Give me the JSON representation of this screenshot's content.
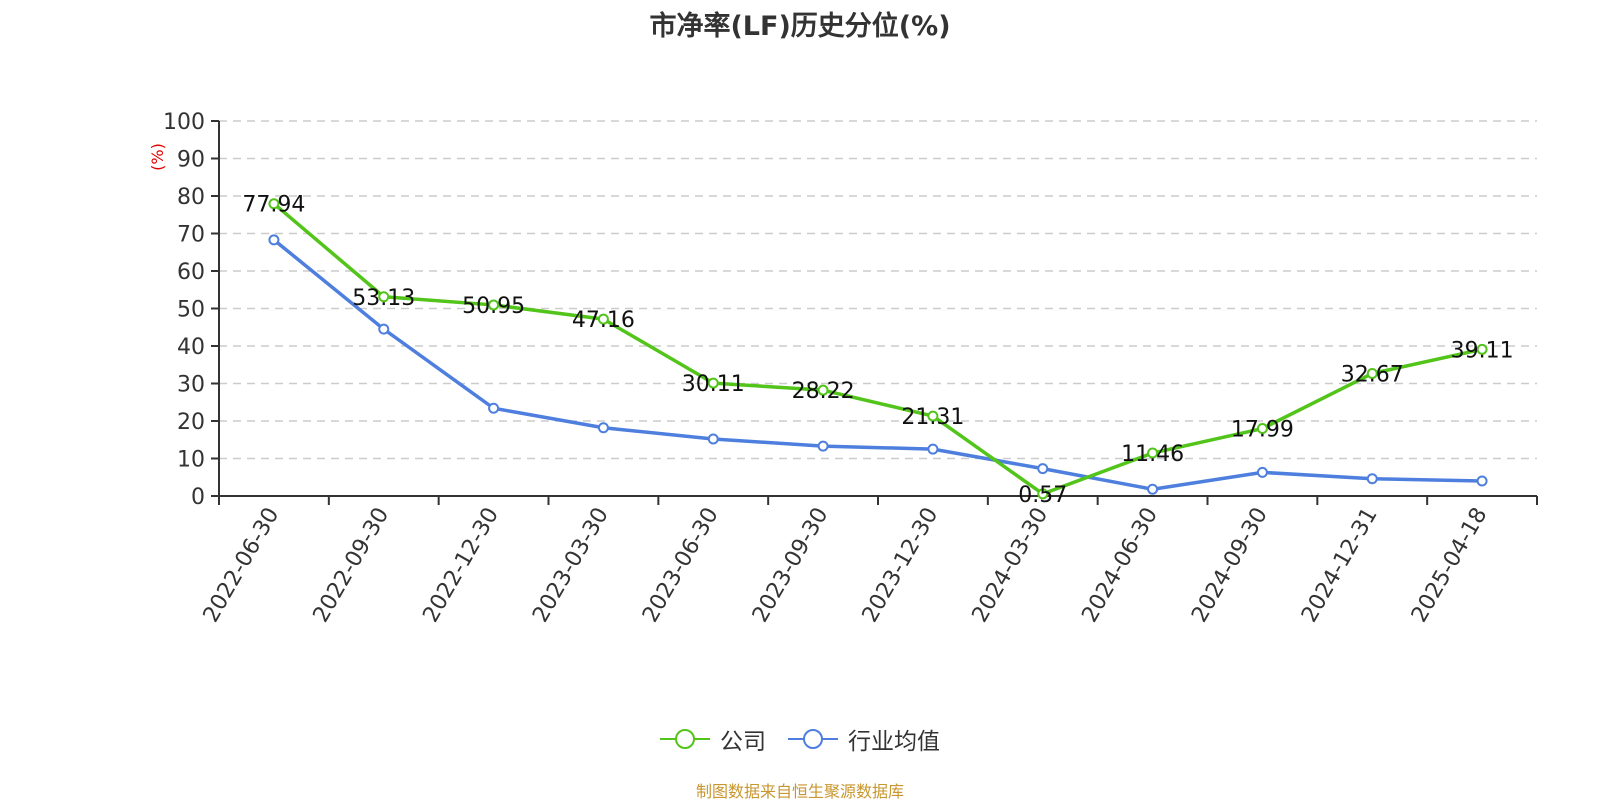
{
  "title": "市净率(LF)历史分位(%)",
  "y_unit_label": "(%)",
  "legend": [
    {
      "label": "公司",
      "color": "#52c41a"
    },
    {
      "label": "行业均值",
      "color": "#4e7fde"
    }
  ],
  "footer": {
    "text": "制图数据来自恒生聚源数据库",
    "color": "#c8962e"
  },
  "chart_data": {
    "type": "line",
    "title": "市净率(LF)历史分位(%)",
    "xlabel": "",
    "ylabel": "(%)",
    "ylim": [
      0,
      100
    ],
    "yticks": [
      0,
      10,
      20,
      30,
      40,
      50,
      60,
      70,
      80,
      90,
      100
    ],
    "grid": true,
    "legend_position": "bottom",
    "categories": [
      "2022-06-30",
      "2022-09-30",
      "2022-12-30",
      "2023-03-30",
      "2023-06-30",
      "2023-09-30",
      "2023-12-30",
      "2024-03-30",
      "2024-06-30",
      "2024-09-30",
      "2024-12-31",
      "2025-04-18"
    ],
    "series": [
      {
        "name": "公司",
        "color": "#52c41a",
        "show_labels": true,
        "values": [
          77.94,
          53.13,
          50.95,
          47.16,
          30.11,
          28.22,
          21.31,
          0.57,
          11.46,
          17.99,
          32.67,
          39.11
        ]
      },
      {
        "name": "行业均值",
        "color": "#4e7fde",
        "show_labels": false,
        "values": [
          68.3,
          44.5,
          23.4,
          18.2,
          15.2,
          13.3,
          12.5,
          7.3,
          1.8,
          6.3,
          4.6,
          4.0
        ]
      }
    ]
  }
}
